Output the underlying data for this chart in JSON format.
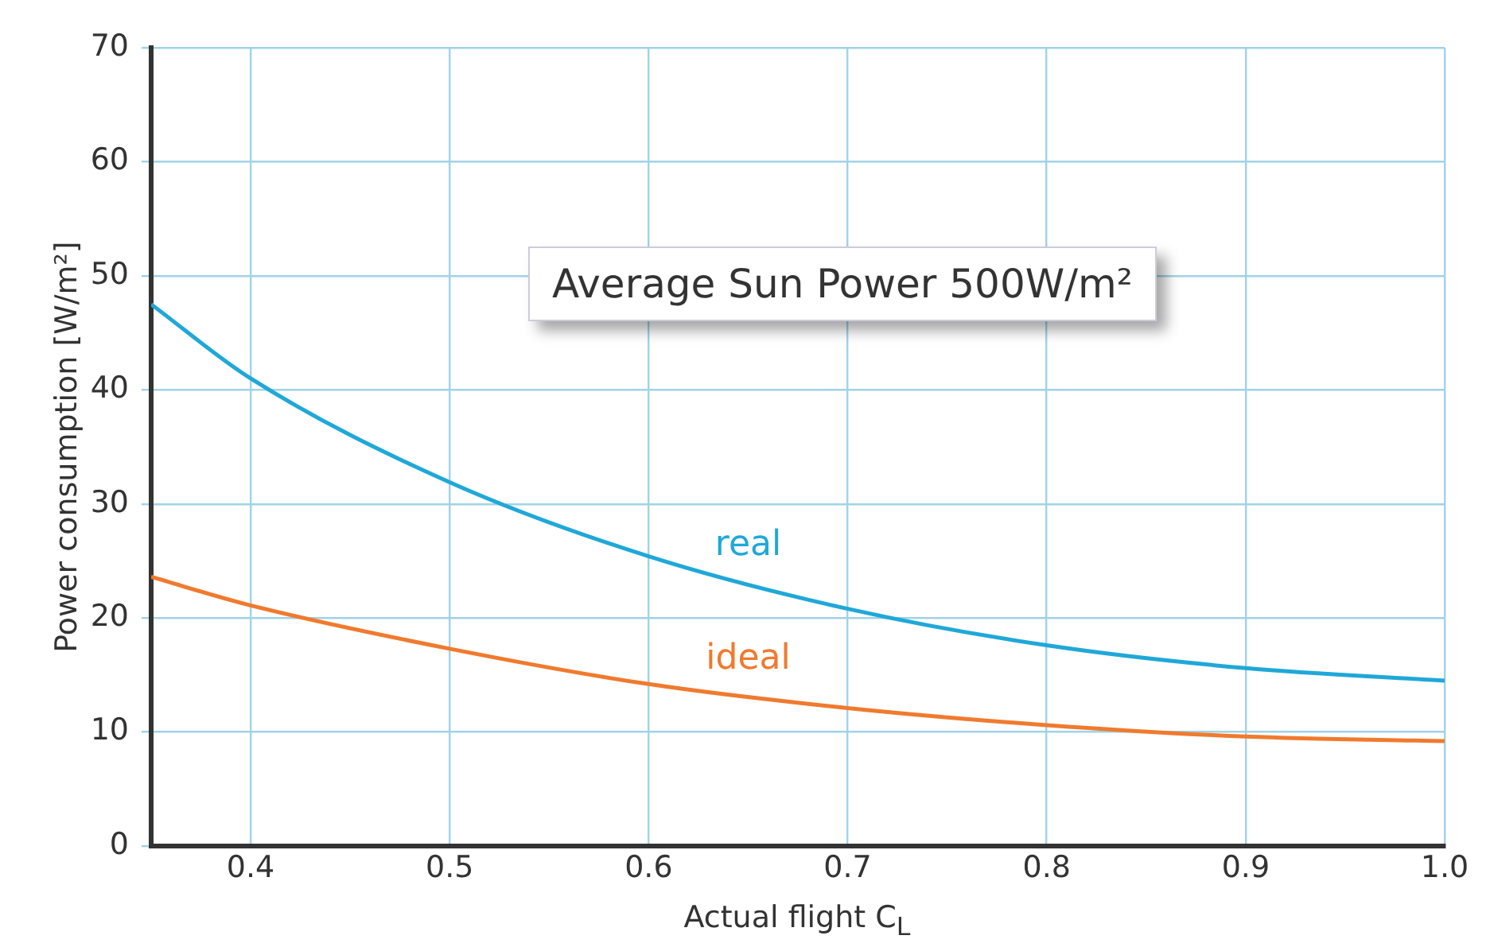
{
  "chart_data": {
    "type": "line",
    "xlabel": "Actual flight C$_{L}$",
    "ylabel": "Power consumption [W/m²]",
    "annotations": [
      "Average Sun Power 500W/m²"
    ],
    "x": [
      0.35,
      0.4,
      0.5,
      0.6,
      0.7,
      0.8,
      0.9,
      1.0
    ],
    "series": [
      {
        "name": "real",
        "color": "#1fa8d8",
        "values": [
          47.5,
          41,
          31.9,
          25.4,
          20.8,
          17.6,
          15.6,
          14.5
        ]
      },
      {
        "name": "ideal",
        "color": "#f07a2e",
        "values": [
          23.6,
          21.1,
          17.3,
          14.2,
          12.1,
          10.6,
          9.6,
          9.2
        ]
      }
    ],
    "xlim": [
      0.35,
      1.0
    ],
    "xticks": [
      0.4,
      0.5,
      0.6,
      0.7,
      0.8,
      0.9,
      {
        "value": 1.0,
        "label": "1.0"
      }
    ],
    "ylim": [
      0,
      70
    ],
    "yticks": [
      0,
      10,
      20,
      30,
      40,
      50,
      60,
      70
    ],
    "grid": true,
    "legend": false,
    "marker": "none",
    "line_style": "solid"
  }
}
